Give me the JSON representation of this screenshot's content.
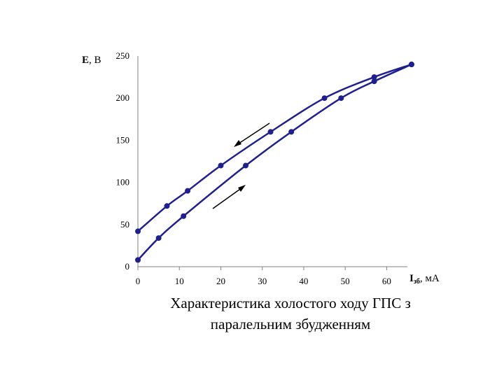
{
  "chart_data": {
    "type": "line",
    "xlabel_main": "I",
    "xlabel_sub": "зб",
    "xlabel_unit": ", мА",
    "ylabel_main": "E",
    "ylabel_unit": ", В",
    "xlim": [
      0,
      65
    ],
    "ylim": [
      0,
      250
    ],
    "x_ticks": [
      0,
      10,
      20,
      30,
      40,
      50,
      60
    ],
    "y_ticks": [
      0,
      50,
      100,
      150,
      200,
      250
    ],
    "grid": false,
    "series": [
      {
        "color": "#1f1f8f",
        "direction": "decreasing",
        "x": [
          0,
          7,
          12,
          20,
          32,
          45,
          57,
          66
        ],
        "y": [
          42,
          72,
          90,
          120,
          160,
          200,
          225,
          240
        ]
      },
      {
        "color": "#1f1f8f",
        "direction": "increasing",
        "x": [
          0,
          5,
          11,
          26,
          37,
          49,
          57,
          66
        ],
        "y": [
          8,
          34,
          60,
          120,
          160,
          200,
          220,
          240
        ]
      }
    ]
  },
  "caption": {
    "line1": "Характеристика холостого ходу ГПС з",
    "line2": "паралельним збудженням"
  }
}
